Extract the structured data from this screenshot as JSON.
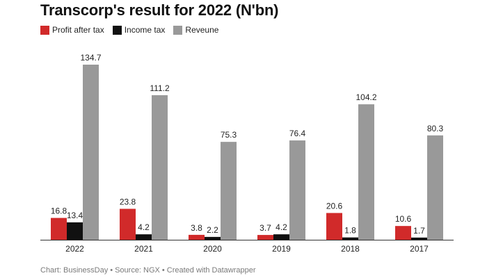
{
  "chart_data": {
    "type": "bar",
    "title": "Transcorp's result for 2022 (N'bn)",
    "categories": [
      "2022",
      "2021",
      "2020",
      "2019",
      "2018",
      "2017"
    ],
    "series": [
      {
        "name": "Profit after tax",
        "color": "#d12a2a",
        "values": [
          16.8,
          23.8,
          3.8,
          3.7,
          20.6,
          10.6
        ],
        "labels": [
          "16.8",
          "23.8",
          "3.8",
          "3.7",
          "20.6",
          "10.6"
        ]
      },
      {
        "name": "Income tax",
        "color": "#111111",
        "values": [
          13.4,
          4.2,
          2.2,
          4.2,
          1.8,
          1.7
        ],
        "labels": [
          "13.4",
          "4.2",
          "2.2",
          "4.2",
          "1.8",
          "1.7"
        ]
      },
      {
        "name": "Reveune",
        "color": "#999999",
        "values": [
          134.7,
          111.2,
          75.3,
          76.4,
          104.2,
          80.3
        ],
        "labels": [
          "134.7",
          "111.2",
          "75.3",
          "76.4",
          "104.2",
          "80.3"
        ]
      }
    ],
    "ylim": [
      0,
      134.7
    ],
    "xlabel": "",
    "ylabel": "",
    "grid": false,
    "legend": "top-left"
  },
  "footer": {
    "chart_credit": "Chart: BusinessDay",
    "separator": "•",
    "source": "Source: NGX",
    "tool": "Created with Datawrapper"
  }
}
